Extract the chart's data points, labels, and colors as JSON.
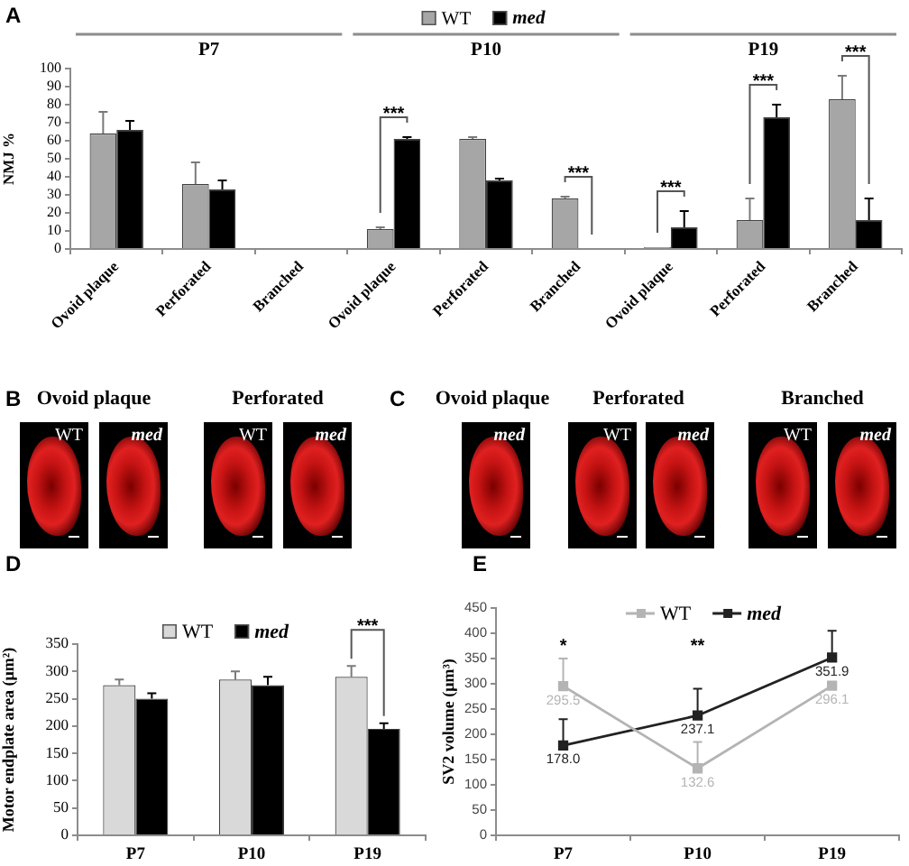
{
  "chart_data": [
    {
      "type": "bar",
      "ylabel": "NMJ %",
      "categories": [
        "Ovoid plaque",
        "Perforated",
        "Branched",
        "Ovoid plaque",
        "Perforated",
        "Branched",
        "Ovoid plaque",
        "Perforated",
        "Branched"
      ],
      "series": [
        {
          "name": "WT",
          "color": "#a6a6a6",
          "values": [
            64,
            36,
            0,
            11,
            61,
            28,
            1,
            16,
            83
          ],
          "errors": [
            [
              64,
              76
            ],
            [
              36,
              48
            ],
            null,
            [
              11,
              12
            ],
            [
              61,
              62
            ],
            [
              28,
              29
            ],
            null,
            [
              16,
              28
            ],
            [
              83,
              96
            ]
          ]
        },
        {
          "name": "med",
          "color": "#000000",
          "values": [
            66,
            33,
            0,
            61,
            38,
            0,
            12,
            73,
            16
          ],
          "errors": [
            [
              66,
              71
            ],
            [
              33,
              38
            ],
            null,
            [
              61,
              62
            ],
            [
              38,
              39
            ],
            null,
            [
              12,
              21
            ],
            [
              73,
              80
            ],
            [
              16,
              28
            ]
          ]
        }
      ],
      "ylim": [
        0,
        100
      ],
      "yticks": [
        0,
        10,
        20,
        30,
        40,
        50,
        60,
        70,
        80,
        90,
        100
      ],
      "legend": "top",
      "annotations": [
        "A",
        "P7",
        "P10",
        "P19",
        "***",
        "***",
        "***",
        "***",
        "***"
      ]
    },
    {
      "type": "other",
      "categories": [
        "Ovoid plaque",
        "Perforated"
      ],
      "annotations": [
        "B",
        "WT",
        "med",
        "WT",
        "med"
      ]
    },
    {
      "type": "other",
      "categories": [
        "Ovoid plaque",
        "Perforated",
        "Branched"
      ],
      "annotations": [
        "C",
        "med",
        "WT",
        "med",
        "WT",
        "med"
      ]
    },
    {
      "type": "bar",
      "ylabel": "Motor endplate area (μm²)",
      "categories": [
        "P7",
        "P10",
        "P19"
      ],
      "series": [
        {
          "name": "WT",
          "color": "#d9d9d9",
          "values": [
            275,
            285,
            290
          ],
          "errors": [
            [
              275,
              285
            ],
            [
              285,
              300
            ],
            [
              290,
              310
            ]
          ]
        },
        {
          "name": "med",
          "color": "#000000",
          "values": [
            250,
            275,
            195
          ],
          "errors": [
            [
              250,
              260
            ],
            [
              275,
              290
            ],
            [
              195,
              205
            ]
          ]
        }
      ],
      "ylim": [
        0,
        350
      ],
      "yticks": [
        0,
        50,
        100,
        150,
        200,
        250,
        300,
        350
      ],
      "legend": "top",
      "annotations": [
        "D",
        {
          "text": "***",
          "x": "P19",
          "y": 290
        }
      ]
    },
    {
      "type": "line",
      "ylabel": "SV2 volume (μm³)",
      "categories": [
        "P7",
        "P10",
        "P19"
      ],
      "series": [
        {
          "name": "WT",
          "color": "#b4b4b4",
          "values": [
            295.5,
            132.6,
            296.1
          ],
          "value_labels": [
            "295.5",
            "132.6",
            "296.1"
          ],
          "errors": [
            [
              295.5,
              350
            ],
            [
              132.6,
              185
            ],
            null
          ]
        },
        {
          "name": "med",
          "color": "#222222",
          "values": [
            178.0,
            237.1,
            351.9
          ],
          "value_labels": [
            "178.0",
            "237.1",
            "351.9"
          ],
          "errors": [
            [
              178.0,
              230
            ],
            [
              237.1,
              290
            ],
            [
              351.9,
              405
            ]
          ]
        }
      ],
      "ylim": [
        0,
        450
      ],
      "yticks": [
        0,
        50,
        100,
        150,
        200,
        250,
        300,
        350,
        400,
        450
      ],
      "legend": "top",
      "marker": "square",
      "annotations": [
        "E",
        "*",
        "**"
      ]
    }
  ]
}
